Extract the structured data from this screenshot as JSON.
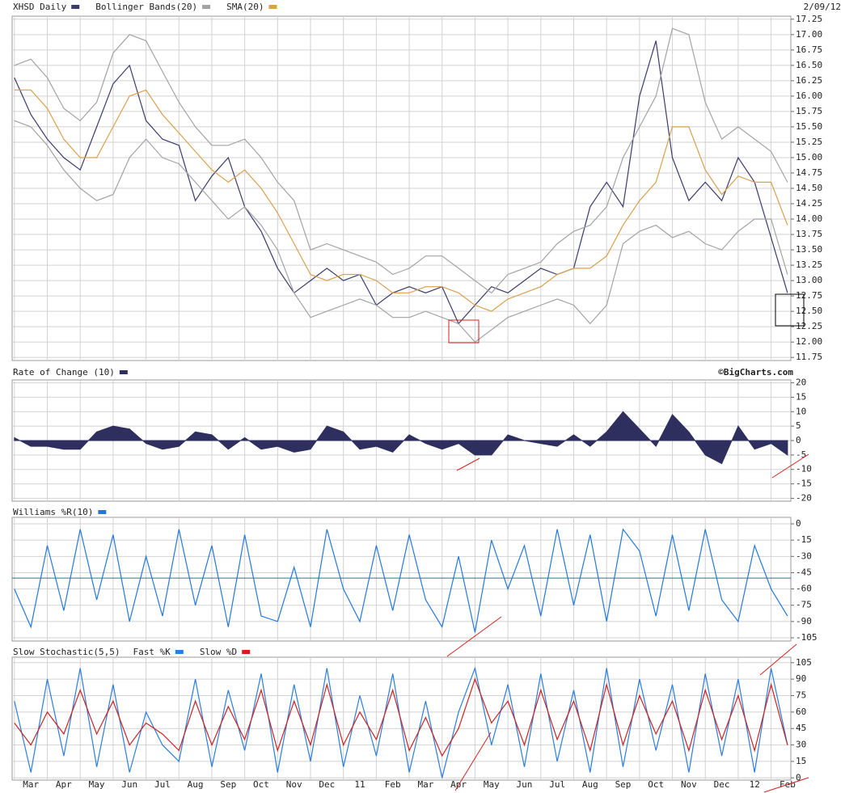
{
  "chart_data": [
    {
      "type": "line",
      "title": "XHSD Daily",
      "date": "2/09/12",
      "x": [
        0,
        0.5,
        1,
        1.5,
        2,
        2.5,
        3,
        3.5,
        4,
        4.5,
        5,
        5.5,
        6,
        6.5,
        7,
        7.5,
        8,
        8.5,
        9,
        9.5,
        10,
        10.5,
        11,
        11.5,
        12,
        12.5,
        13,
        13.5,
        14,
        14.5,
        15,
        15.5,
        16,
        16.5,
        17,
        17.5,
        18,
        18.5,
        19,
        19.5,
        20,
        20.5,
        21,
        21.5,
        22,
        22.5,
        23,
        23.5
      ],
      "xlim": [
        -0.07,
        23.6
      ],
      "xticks": [
        0,
        1,
        2,
        3,
        4,
        5,
        6,
        7,
        8,
        9,
        10,
        11,
        12,
        13,
        14,
        15,
        16,
        17,
        18,
        19,
        20,
        21,
        22,
        23
      ],
      "ylim": [
        11.7,
        17.3
      ],
      "yticks": [
        17.25,
        {
          "value": 17,
          "label": "17.00"
        },
        16.75,
        {
          "value": 16.5,
          "label": "16.50"
        },
        16.25,
        {
          "value": 16,
          "label": "16.00"
        },
        15.75,
        {
          "value": 15.5,
          "label": "15.50"
        },
        15.25,
        {
          "value": 15,
          "label": "15.00"
        },
        14.75,
        {
          "value": 14.5,
          "label": "14.50"
        },
        14.25,
        {
          "value": 14,
          "label": "14.00"
        },
        13.75,
        {
          "value": 13.5,
          "label": "13.50"
        },
        13.25,
        {
          "value": 13,
          "label": "13.00"
        },
        12.75,
        {
          "value": 12.5,
          "label": "12.50"
        },
        12.25,
        {
          "value": 12,
          "label": "12.00"
        },
        11.75
      ],
      "grid": true,
      "series": [
        {
          "name": "XHSD Daily",
          "color": "#3b3b6f",
          "values": [
            16.3,
            15.7,
            15.3,
            15.0,
            14.8,
            15.5,
            16.2,
            16.5,
            15.6,
            15.3,
            15.2,
            14.3,
            14.7,
            15.0,
            14.2,
            13.8,
            13.2,
            12.8,
            13.0,
            13.2,
            13.0,
            13.1,
            12.6,
            12.8,
            12.9,
            12.8,
            12.9,
            12.3,
            12.6,
            12.9,
            12.8,
            13.0,
            13.2,
            13.1,
            13.2,
            14.2,
            14.6,
            14.2,
            16.0,
            16.9,
            15.0,
            14.3,
            14.6,
            14.3,
            15.0,
            14.6,
            13.7,
            12.8
          ]
        },
        {
          "name": "Bollinger Bands(20)",
          "color": "#a3a3a3",
          "upper": [
            16.5,
            16.6,
            16.3,
            15.8,
            15.6,
            15.9,
            16.7,
            17.0,
            16.9,
            16.4,
            15.9,
            15.5,
            15.2,
            15.2,
            15.3,
            15.0,
            14.6,
            14.3,
            13.5,
            13.6,
            13.5,
            13.4,
            13.3,
            13.1,
            13.2,
            13.4,
            13.4,
            13.2,
            13.0,
            12.8,
            13.1,
            13.2,
            13.3,
            13.6,
            13.8,
            13.9,
            14.2,
            15.0,
            15.5,
            16.0,
            17.1,
            17.0,
            15.9,
            15.3,
            15.5,
            15.3,
            15.1,
            14.6
          ],
          "lower": [
            15.6,
            15.5,
            15.2,
            14.8,
            14.5,
            14.3,
            14.4,
            15.0,
            15.3,
            15.0,
            14.9,
            14.6,
            14.3,
            14.0,
            14.2,
            13.9,
            13.5,
            12.8,
            12.4,
            12.5,
            12.6,
            12.7,
            12.6,
            12.4,
            12.4,
            12.5,
            12.4,
            12.3,
            12.0,
            12.2,
            12.4,
            12.5,
            12.6,
            12.7,
            12.6,
            12.3,
            12.6,
            13.6,
            13.8,
            13.9,
            13.7,
            13.8,
            13.6,
            13.5,
            13.8,
            14.0,
            14.0,
            13.1
          ]
        },
        {
          "name": "SMA(20)",
          "color": "#d9a04e",
          "values": [
            16.1,
            16.1,
            15.8,
            15.3,
            15.0,
            15.0,
            15.5,
            16.0,
            16.1,
            15.7,
            15.4,
            15.1,
            14.8,
            14.6,
            14.8,
            14.5,
            14.1,
            13.6,
            13.1,
            13.0,
            13.1,
            13.1,
            13.0,
            12.8,
            12.8,
            12.9,
            12.9,
            12.8,
            12.6,
            12.5,
            12.7,
            12.8,
            12.9,
            13.1,
            13.2,
            13.2,
            13.4,
            13.9,
            14.3,
            14.6,
            15.5,
            15.5,
            14.8,
            14.4,
            14.7,
            14.6,
            14.6,
            13.9
          ]
        }
      ]
    },
    {
      "type": "area",
      "credit": "©BigCharts.com",
      "x": [
        0,
        0.5,
        1,
        1.5,
        2,
        2.5,
        3,
        3.5,
        4,
        4.5,
        5,
        5.5,
        6,
        6.5,
        7,
        7.5,
        8,
        8.5,
        9,
        9.5,
        10,
        10.5,
        11,
        11.5,
        12,
        12.5,
        13,
        13.5,
        14,
        14.5,
        15,
        15.5,
        16,
        16.5,
        17,
        17.5,
        18,
        18.5,
        19,
        19.5,
        20,
        20.5,
        21,
        21.5,
        22,
        22.5,
        23,
        23.5
      ],
      "xlim": [
        -0.07,
        23.6
      ],
      "xticks": [
        0,
        1,
        2,
        3,
        4,
        5,
        6,
        7,
        8,
        9,
        10,
        11,
        12,
        13,
        14,
        15,
        16,
        17,
        18,
        19,
        20,
        21,
        22,
        23
      ],
      "ylim": [
        -21,
        21
      ],
      "yticks": [
        20,
        15,
        10,
        5,
        0,
        -5,
        -10,
        -15,
        -20
      ],
      "grid": true,
      "series": [
        {
          "name": "Rate of Change (10)",
          "color": "#2f2f5f",
          "values": [
            1,
            -2,
            -2,
            -3,
            -3,
            3,
            5,
            4,
            -1,
            -3,
            -2,
            3,
            2,
            -3,
            1,
            -3,
            -2,
            -4,
            -3,
            5,
            3,
            -3,
            -2,
            -4,
            2,
            -1,
            -3,
            -1,
            -5,
            -5,
            2,
            0,
            -1,
            -2,
            2,
            -2,
            3,
            10,
            4,
            -2,
            9,
            3,
            -5,
            -8,
            5,
            -3,
            -1,
            -5
          ]
        }
      ]
    },
    {
      "type": "line",
      "reference_line": -50,
      "x": [
        0,
        0.5,
        1,
        1.5,
        2,
        2.5,
        3,
        3.5,
        4,
        4.5,
        5,
        5.5,
        6,
        6.5,
        7,
        7.5,
        8,
        8.5,
        9,
        9.5,
        10,
        10.5,
        11,
        11.5,
        12,
        12.5,
        13,
        13.5,
        14,
        14.5,
        15,
        15.5,
        16,
        16.5,
        17,
        17.5,
        18,
        18.5,
        19,
        19.5,
        20,
        20.5,
        21,
        21.5,
        22,
        22.5,
        23,
        23.5
      ],
      "xlim": [
        -0.07,
        23.6
      ],
      "xticks": [
        0,
        1,
        2,
        3,
        4,
        5,
        6,
        7,
        8,
        9,
        10,
        11,
        12,
        13,
        14,
        15,
        16,
        17,
        18,
        19,
        20,
        21,
        22,
        23
      ],
      "ylim": [
        -108,
        6
      ],
      "yticks": [
        0,
        -15,
        -30,
        -45,
        -60,
        -75,
        -90,
        -105
      ],
      "grid": true,
      "series": [
        {
          "name": "Williams %R(10)",
          "color": "#2378de",
          "values": [
            -60,
            -95,
            -20,
            -80,
            -5,
            -70,
            -10,
            -90,
            -30,
            -85,
            -5,
            -75,
            -20,
            -95,
            -10,
            -85,
            -90,
            -40,
            -95,
            -5,
            -60,
            -90,
            -20,
            -80,
            -10,
            -70,
            -95,
            -30,
            -100,
            -15,
            -60,
            -20,
            -85,
            -5,
            -75,
            -10,
            -90,
            -5,
            -25,
            -85,
            -10,
            -80,
            -5,
            -70,
            -90,
            -20,
            -60,
            -85
          ]
        }
      ]
    },
    {
      "type": "line",
      "title": "Slow Stochastic(5,5)",
      "x": [
        0,
        0.5,
        1,
        1.5,
        2,
        2.5,
        3,
        3.5,
        4,
        4.5,
        5,
        5.5,
        6,
        6.5,
        7,
        7.5,
        8,
        8.5,
        9,
        9.5,
        10,
        10.5,
        11,
        11.5,
        12,
        12.5,
        13,
        13.5,
        14,
        14.5,
        15,
        15.5,
        16,
        16.5,
        17,
        17.5,
        18,
        18.5,
        19,
        19.5,
        20,
        20.5,
        21,
        21.5,
        22,
        22.5,
        23,
        23.5
      ],
      "xlim": [
        -0.07,
        23.6
      ],
      "xticks": [
        0,
        1,
        2,
        3,
        4,
        5,
        6,
        7,
        8,
        9,
        10,
        11,
        12,
        13,
        14,
        15,
        16,
        17,
        18,
        19,
        20,
        21,
        22,
        23
      ],
      "categories": [
        "Mar",
        "Apr",
        "May",
        "Jun",
        "Jul",
        "Aug",
        "Sep",
        "Oct",
        "Nov",
        "Dec",
        "11",
        "Feb",
        "Mar",
        "Apr",
        "May",
        "Jun",
        "Jul",
        "Aug",
        "Sep",
        "Oct",
        "Nov",
        "Dec",
        "12",
        "Feb"
      ],
      "ylim": [
        -2,
        110
      ],
      "yticks": [
        105,
        90,
        75,
        60,
        45,
        30,
        15,
        0
      ],
      "grid": true,
      "series": [
        {
          "name": "Fast %K",
          "color": "#2a7de1",
          "values": [
            70,
            5,
            90,
            20,
            100,
            10,
            85,
            5,
            60,
            30,
            15,
            90,
            10,
            80,
            25,
            95,
            5,
            85,
            15,
            100,
            10,
            75,
            20,
            95,
            5,
            70,
            0,
            60,
            100,
            30,
            85,
            10,
            95,
            15,
            80,
            5,
            100,
            10,
            90,
            25,
            85,
            5,
            95,
            20,
            90,
            5,
            100,
            30
          ]
        },
        {
          "name": "Slow %D",
          "color": "#cc2222",
          "values": [
            50,
            30,
            60,
            40,
            80,
            40,
            70,
            30,
            50,
            40,
            25,
            70,
            30,
            65,
            35,
            80,
            25,
            70,
            30,
            85,
            30,
            60,
            35,
            80,
            25,
            55,
            20,
            45,
            90,
            50,
            70,
            30,
            80,
            35,
            70,
            25,
            85,
            30,
            75,
            40,
            70,
            25,
            80,
            35,
            75,
            25,
            85,
            30
          ]
        }
      ]
    }
  ]
}
